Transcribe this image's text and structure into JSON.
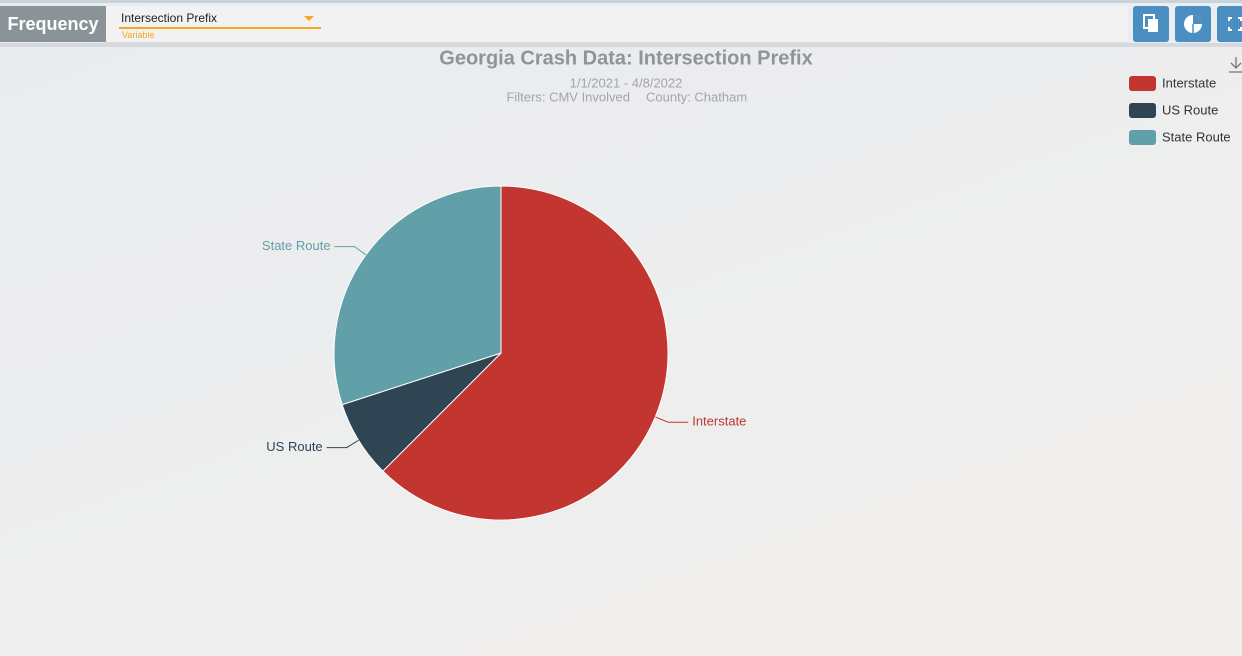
{
  "toolbar": {
    "mode": "Frequency",
    "variable": "Intersection Prefix",
    "variable_hint": "Variable"
  },
  "chart_data": {
    "type": "pie",
    "title": "Georgia Crash Data: Intersection Prefix",
    "subtitle": [
      "1/1/2021 - 4/8/2022",
      "Filters: CMV Involved",
      "County: Chatham"
    ],
    "categories": [
      "Interstate",
      "US Route",
      "State Route"
    ],
    "values": [
      62.5,
      7.5,
      30
    ],
    "colors": [
      "#c23531",
      "#2f4554",
      "#61a0a8"
    ],
    "legend": "top-right"
  }
}
